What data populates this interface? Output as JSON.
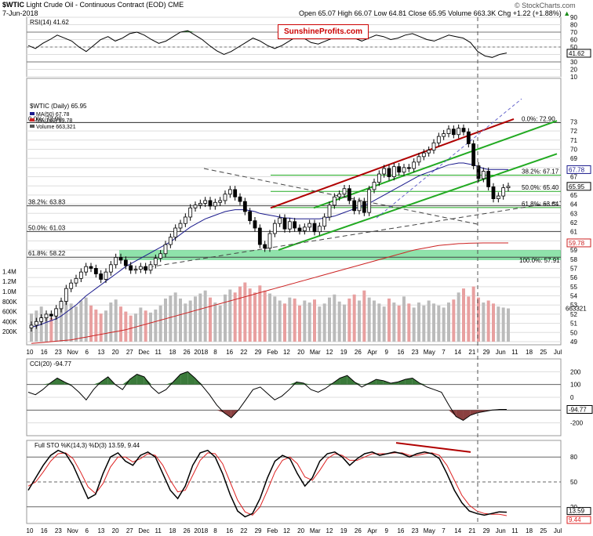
{
  "header": {
    "symbol": "$WTIC",
    "name": "Light Crude Oil - Continuous Contract (EOD)",
    "exchange": "CME",
    "date": "7-Jun-2018",
    "copyright": "© StockCharts.com",
    "quote": "Open 65.07  High 66.07  Low 64.81  Close 65.95  Volume 663.3K  Chg +1.22 (+1.88%)",
    "quote_chg_arrow": "▲"
  },
  "brand": "SunshineProfits.com",
  "colors": {
    "price_up": "#000000",
    "price_down": "#000000",
    "ma50": "#1a1a8c",
    "ma200": "#cc2222",
    "channel": "#22aa22",
    "trend_red": "#b00000",
    "grid": "#dddddd",
    "fib": "#555555",
    "zone": "#33cc66",
    "volume_up": "#bbbbbb",
    "volume_down": "#e8a0a0",
    "area_fill": "#3a7a3a"
  },
  "chart_data": [
    {
      "type": "line",
      "panel": "RSI",
      "title": "RSI(14) 41.62",
      "last_value": 41.62,
      "last_label": "41.62",
      "ylim": [
        10,
        90
      ],
      "y_ticks": [
        "90",
        "80",
        "70",
        "60",
        "50",
        "40",
        "30",
        "20",
        "10"
      ],
      "reference_lines": [
        70,
        50,
        30
      ],
      "values": [
        52,
        48,
        55,
        60,
        66,
        62,
        58,
        50,
        44,
        52,
        60,
        64,
        58,
        62,
        68,
        70,
        66,
        60,
        55,
        58,
        64,
        70,
        72,
        66,
        60,
        52,
        45,
        40,
        44,
        50,
        56,
        62,
        58,
        52,
        48,
        52,
        58,
        64,
        62,
        56,
        54,
        58,
        62,
        66,
        68,
        62,
        58,
        62,
        66,
        64,
        60,
        62,
        66,
        68,
        64,
        60,
        58,
        62,
        66,
        64,
        62,
        56,
        44,
        38,
        36,
        40,
        42
      ]
    },
    {
      "type": "candlestick",
      "panel": "Price",
      "title": "$WTIC (Daily) 65.95",
      "legend": [
        "MA(50) 67.78",
        "MA(200) 59.78",
        "Volume 663,321"
      ],
      "ylim": [
        49,
        75
      ],
      "y_ticks": [
        "73",
        "72",
        "71",
        "70",
        "69",
        "68",
        "67",
        "66",
        "65",
        "64",
        "63",
        "62",
        "61",
        "60",
        "59",
        "58",
        "57",
        "56",
        "55",
        "54",
        "53",
        "52",
        "51",
        "50",
        "49"
      ],
      "last_labels": {
        "close": "65.95",
        "ma50": "67.78",
        "ma200": "59.78",
        "volume": "663321"
      },
      "close": [
        50.8,
        51.2,
        51.6,
        52.0,
        51.8,
        52.6,
        53.4,
        54.8,
        55.4,
        55.9,
        56.6,
        57.2,
        57.0,
        56.4,
        55.8,
        56.6,
        57.4,
        58.2,
        57.9,
        57.3,
        56.8,
        56.9,
        57.2,
        56.8,
        57.4,
        58.1,
        58.6,
        59.6,
        60.4,
        61.4,
        61.9,
        62.6,
        63.6,
        63.9,
        64.1,
        64.4,
        63.8,
        64.2,
        64.4,
        65.1,
        65.6,
        64.8,
        64.3,
        63.2,
        62.2,
        61.4,
        59.6,
        59.2,
        60.8,
        61.9,
        62.5,
        61.3,
        62.1,
        61.4,
        61.1,
        61.5,
        61.9,
        61.0,
        61.6,
        62.6,
        63.9,
        64.8,
        65.1,
        65.7,
        64.4,
        63.3,
        64.3,
        63.1,
        65.6,
        66.4,
        67.3,
        67.9,
        67.0,
        68.1,
        67.5,
        68.0,
        67.9,
        68.6,
        69.2,
        69.6,
        69.9,
        70.7,
        71.4,
        71.7,
        72.2,
        71.6,
        72.3,
        71.9,
        70.6,
        68.2,
        66.8,
        67.6,
        65.9,
        64.6,
        64.9,
        65.8,
        65.95
      ],
      "ma50": [
        50.6,
        50.7,
        50.9,
        51.1,
        51.3,
        51.5,
        51.8,
        52.2,
        52.6,
        53.0,
        53.5,
        54.0,
        54.4,
        54.8,
        55.2,
        55.6,
        56.0,
        56.4,
        56.8,
        57.2,
        57.5,
        57.8,
        58.1,
        58.4,
        58.7,
        59.0,
        59.3,
        59.6,
        59.9,
        60.3,
        60.7,
        61.1,
        61.5,
        61.8,
        62.1,
        62.4,
        62.6,
        62.8,
        63.0,
        63.2,
        63.3,
        63.4,
        63.4,
        63.4,
        63.3,
        63.2,
        63.0,
        62.9,
        62.8,
        62.7,
        62.6,
        62.5,
        62.5,
        62.4,
        62.4,
        62.4,
        62.4,
        62.4,
        62.4,
        62.5,
        62.6,
        62.7,
        62.9,
        63.1,
        63.3,
        63.5,
        63.7,
        63.9,
        64.1,
        64.4,
        64.7,
        65.0,
        65.3,
        65.6,
        65.9,
        66.2,
        66.5,
        66.8,
        67.1,
        67.3,
        67.5,
        67.7,
        67.9,
        68.1,
        68.3,
        68.4,
        68.5,
        68.5,
        68.4,
        68.3,
        68.1,
        67.9,
        67.8,
        67.8,
        67.8,
        67.8,
        67.78
      ],
      "ma200": [
        48.8,
        48.85,
        48.9,
        48.95,
        49.0,
        49.05,
        49.1,
        49.15,
        49.2,
        49.3,
        49.4,
        49.5,
        49.6,
        49.7,
        49.8,
        49.9,
        50.0,
        50.1,
        50.2,
        50.3,
        50.45,
        50.6,
        50.75,
        50.9,
        51.05,
        51.2,
        51.35,
        51.5,
        51.65,
        51.8,
        51.95,
        52.1,
        52.25,
        52.4,
        52.55,
        52.7,
        52.85,
        53.0,
        53.15,
        53.3,
        53.45,
        53.6,
        53.75,
        53.9,
        54.05,
        54.2,
        54.35,
        54.5,
        54.65,
        54.8,
        54.95,
        55.1,
        55.25,
        55.4,
        55.55,
        55.7,
        55.85,
        56.0,
        56.15,
        56.3,
        56.45,
        56.6,
        56.75,
        56.9,
        57.05,
        57.2,
        57.35,
        57.5,
        57.65,
        57.8,
        57.95,
        58.1,
        58.25,
        58.4,
        58.55,
        58.7,
        58.85,
        59.0,
        59.1,
        59.2,
        59.3,
        59.4,
        59.5,
        59.55,
        59.6,
        59.65,
        59.7,
        59.72,
        59.74,
        59.76,
        59.77,
        59.78,
        59.78,
        59.78,
        59.78,
        59.78,
        59.78
      ],
      "volume": [
        560000,
        620000,
        700000,
        540000,
        480000,
        650000,
        820000,
        900000,
        760000,
        700000,
        820000,
        880000,
        720000,
        640000,
        560000,
        620000,
        780000,
        840000,
        700000,
        600000,
        520000,
        560000,
        680000,
        620000,
        580000,
        640000,
        720000,
        860000,
        920000,
        980000,
        860000,
        760000,
        820000,
        900000,
        960000,
        1020000,
        880000,
        780000,
        720000,
        940000,
        1040000,
        980000,
        1100000,
        1180000,
        1060000,
        980000,
        1120000,
        1020000,
        960000,
        900000,
        820000,
        760000,
        880000,
        860000,
        720000,
        820000,
        780000,
        840000,
        700000,
        760000,
        880000,
        940000,
        800000,
        740000,
        860000,
        940000,
        820000,
        1020000,
        880000,
        820000,
        760000,
        700000,
        860000,
        780000,
        720000,
        900000,
        760000,
        680000,
        780000,
        720000,
        820000,
        760000,
        720000,
        680000,
        780000,
        840000,
        980000,
        1060000,
        900000,
        1100000,
        880000,
        780000,
        820000,
        760000,
        700000,
        680000,
        663321
      ],
      "annotations": [
        "0.0%: 72.90",
        "38.2%: 67.17",
        "50.0%: 65.40",
        "61.8%: 63.64",
        "38.2%: 63.83",
        "50.0%: 61.03",
        "61.8%: 58.22",
        "100.0%: 57.91"
      ],
      "volume_ticks": [
        "1.4M",
        "1.2M",
        "1.0M",
        "800K",
        "600K",
        "400K",
        "200K"
      ],
      "x_ticks": [
        "10",
        "16",
        "23",
        "Nov",
        "6",
        "13",
        "20",
        "27",
        "Dec",
        "11",
        "18",
        "26",
        "2018",
        "8",
        "16",
        "22",
        "29",
        "Feb",
        "12",
        "20",
        "Mar",
        "12",
        "19",
        "26",
        "Apr",
        "9",
        "16",
        "23",
        "May",
        "7",
        "14",
        "21",
        "29",
        "Jun",
        "11",
        "18",
        "25",
        "Jul"
      ]
    },
    {
      "type": "area",
      "panel": "CCI",
      "title": "CCI(20) -94.77",
      "last_value": -94.77,
      "last_label": "-94.77",
      "ylim": [
        -300,
        300
      ],
      "y_ticks": [
        "200",
        "100",
        "0",
        "-100",
        "-200"
      ],
      "reference_lines": [
        100,
        -100
      ],
      "values": [
        40,
        20,
        60,
        110,
        150,
        120,
        90,
        40,
        -20,
        60,
        120,
        160,
        100,
        60,
        140,
        180,
        160,
        80,
        30,
        60,
        120,
        180,
        200,
        150,
        90,
        20,
        -60,
        -120,
        -160,
        -100,
        -20,
        60,
        80,
        30,
        -20,
        10,
        60,
        120,
        110,
        60,
        40,
        70,
        110,
        150,
        170,
        120,
        80,
        110,
        140,
        130,
        110,
        120,
        140,
        150,
        110,
        80,
        60,
        40,
        -60,
        -150,
        -180,
        -140,
        -120,
        -110,
        -100,
        -95,
        -94.77
      ]
    },
    {
      "type": "line",
      "panel": "STO",
      "title": "Full STO %K(14,3) %D(3) 13.59, 9.44",
      "legend": [
        "%K 13.59",
        "%D 9.44"
      ],
      "last_labels": {
        "k": "13.59",
        "d": "9.44"
      },
      "ylim": [
        0,
        100
      ],
      "y_ticks": [
        "80",
        "50",
        "20"
      ],
      "reference_lines": [
        80,
        50,
        20
      ],
      "k": [
        40,
        55,
        70,
        82,
        88,
        84,
        70,
        50,
        30,
        35,
        60,
        80,
        85,
        75,
        70,
        82,
        86,
        80,
        60,
        40,
        30,
        45,
        70,
        85,
        88,
        80,
        60,
        35,
        15,
        8,
        12,
        30,
        55,
        75,
        82,
        78,
        60,
        45,
        55,
        75,
        84,
        86,
        80,
        70,
        78,
        84,
        86,
        82,
        84,
        86,
        84,
        80,
        84,
        86,
        84,
        78,
        60,
        40,
        25,
        15,
        12,
        10,
        12,
        14,
        13.59
      ],
      "d": [
        45,
        50,
        62,
        75,
        84,
        85,
        78,
        62,
        44,
        36,
        48,
        68,
        80,
        80,
        74,
        78,
        84,
        82,
        70,
        52,
        38,
        40,
        58,
        76,
        85,
        84,
        72,
        50,
        28,
        14,
        10,
        20,
        40,
        62,
        76,
        80,
        72,
        56,
        52,
        64,
        78,
        84,
        82,
        76,
        76,
        80,
        84,
        84,
        84,
        85,
        85,
        82,
        82,
        84,
        85,
        82,
        70,
        52,
        34,
        22,
        15,
        12,
        11,
        11,
        9.44
      ]
    }
  ]
}
